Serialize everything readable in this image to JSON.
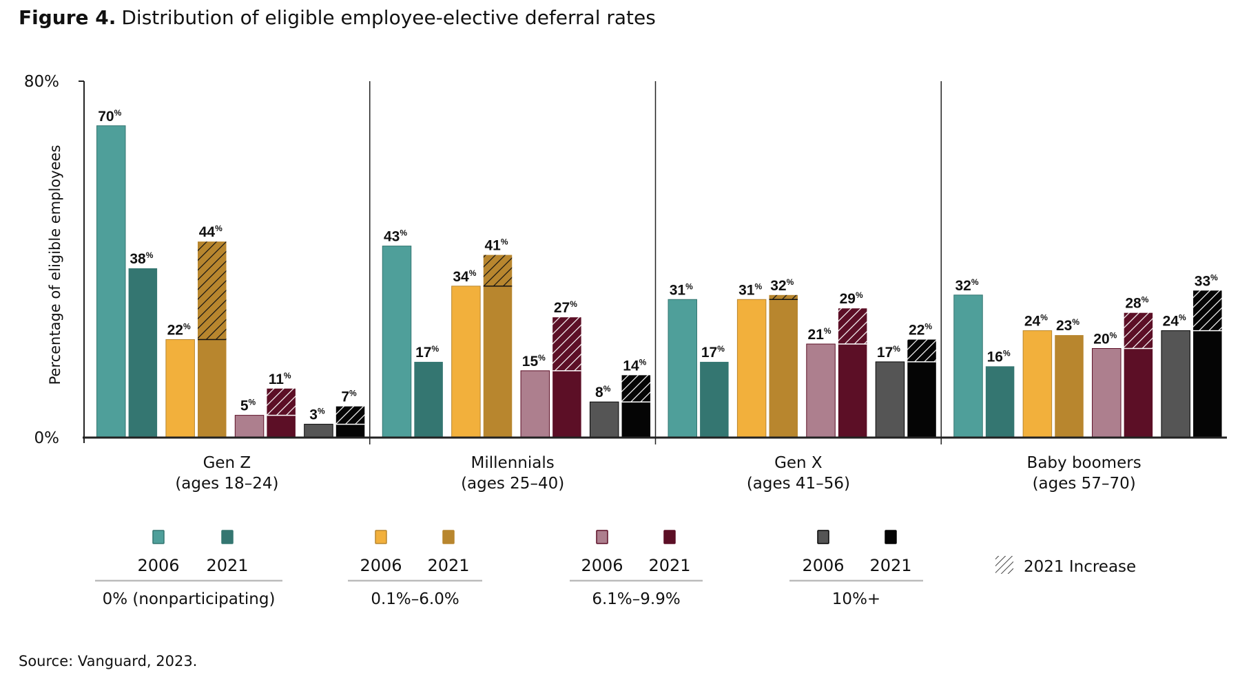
{
  "chart_data": {
    "type": "bar",
    "title_prefix": "Figure 4.",
    "title": "Distribution of eligible employee-elective deferral rates",
    "ylabel": "Percentage of eligible employees",
    "ylim": [
      0,
      80
    ],
    "yticks": [
      "0%",
      "80%"
    ],
    "groups": [
      {
        "name": "Gen Z",
        "sub": "(ages 18–24)"
      },
      {
        "name": "Millennials",
        "sub": "(ages 25–40)"
      },
      {
        "name": "Gen X",
        "sub": "(ages 41–56)"
      },
      {
        "name": "Baby boomers",
        "sub": "(ages 57–70)"
      }
    ],
    "rate_categories": [
      {
        "label": "0% (nonparticipating)",
        "color_2006": "#4f9f9a",
        "color_2021": "#347671",
        "hatch": "#111111"
      },
      {
        "label": "0.1%–6.0%",
        "color_2006": "#f2b03c",
        "color_2021": "#b8862e",
        "hatch": "#111111"
      },
      {
        "label": "6.1%–9.9%",
        "color_2006": "#ad7f8e",
        "color_2021": "#5c0f26",
        "hatch": "#ffffff"
      },
      {
        "label": "10%+",
        "color_2006": "#555555",
        "color_2021": "#050505",
        "hatch": "#ffffff"
      }
    ],
    "years": [
      "2006",
      "2021"
    ],
    "values": [
      [
        [
          70,
          38
        ],
        [
          22,
          44
        ],
        [
          5,
          11
        ],
        [
          3,
          7
        ]
      ],
      [
        [
          43,
          17
        ],
        [
          34,
          41
        ],
        [
          15,
          27
        ],
        [
          8,
          14
        ]
      ],
      [
        [
          31,
          17
        ],
        [
          31,
          32
        ],
        [
          21,
          29
        ],
        [
          17,
          22
        ]
      ],
      [
        [
          32,
          16
        ],
        [
          24,
          23
        ],
        [
          20,
          28
        ],
        [
          24,
          33
        ]
      ]
    ],
    "value_suffix": "%",
    "increase_legend": "2021 Increase",
    "source": "Source: Vanguard, 2023."
  }
}
